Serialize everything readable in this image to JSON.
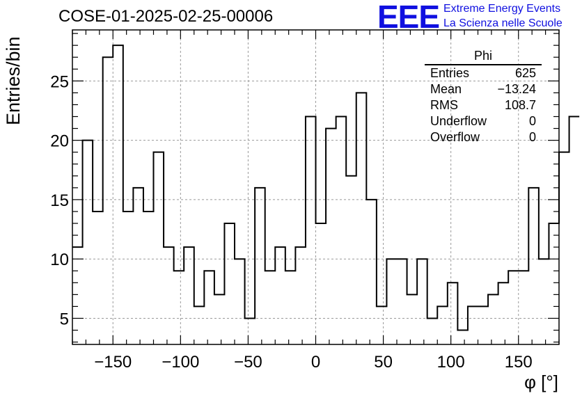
{
  "header": {
    "title": "COSE-01-2025-02-25-00006",
    "logo_text": "EEE",
    "logo_line1": "Extreme Energy Events",
    "logo_line2": "La Scienza nelle Scuole",
    "logo_color": "#1010e0"
  },
  "stats_box": {
    "title": "Phi",
    "rows": [
      {
        "label": "Entries",
        "value": "625"
      },
      {
        "label": "Mean",
        "value": "−13.24"
      },
      {
        "label": "RMS",
        "value": "108.7"
      },
      {
        "label": "Underflow",
        "value": "0"
      },
      {
        "label": "Overflow",
        "value": "0"
      }
    ]
  },
  "chart_data": {
    "type": "histogram",
    "title": "COSE-01-2025-02-25-00006",
    "xlabel": "φ [°]",
    "ylabel": "Entries/bin",
    "xlim": [
      -180,
      180
    ],
    "ylim": [
      2.8,
      29.3
    ],
    "xticks": [
      -150,
      -100,
      -50,
      0,
      50,
      100,
      150
    ],
    "yticks": [
      5,
      10,
      15,
      20,
      25
    ],
    "grid": true,
    "bin_width": 7.5,
    "bin_edges_start": -180,
    "values": [
      11,
      20,
      14,
      27,
      28,
      14,
      16,
      14,
      19,
      11,
      9,
      11,
      6,
      9,
      7,
      13,
      10,
      5,
      16,
      9,
      11,
      9,
      11,
      22,
      13,
      21,
      22,
      17,
      24,
      15,
      6,
      10,
      10,
      7,
      10,
      5,
      6,
      8,
      4,
      6,
      6,
      7,
      8,
      9,
      9,
      16,
      10,
      13,
      19,
      22
    ],
    "line_color": "#000000"
  }
}
